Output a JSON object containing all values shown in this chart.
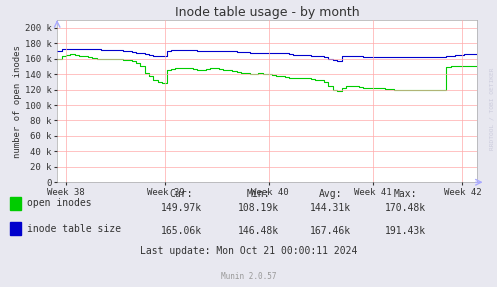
{
  "title": "Inode table usage - by month",
  "ylabel": "number of open inodes",
  "bg_color": "#e8e8f0",
  "plot_bg_color": "#ffffff",
  "grid_color": "#ffaaaa",
  "border_color": "#aaaaaa",
  "ylim": [
    0,
    210000
  ],
  "yticks": [
    0,
    20000,
    40000,
    60000,
    80000,
    100000,
    120000,
    140000,
    160000,
    180000,
    200000
  ],
  "ytick_labels": [
    "0",
    "20 k",
    "40 k",
    "60 k",
    "80 k",
    "100 k",
    "120 k",
    "140 k",
    "160 k",
    "180 k",
    "200 k"
  ],
  "xticklabels": [
    "Week 38",
    "Week 39",
    "Week 40",
    "Week 41",
    "Week 42"
  ],
  "legend_labels": [
    "open inodes",
    "inode table size"
  ],
  "legend_colors": [
    "#00cc00",
    "#0000cc"
  ],
  "footer_text": "Munin 2.0.57",
  "watermark": "RRDTOOL / TOBI OETIKER",
  "stats": {
    "header": [
      "Cur:",
      "Min:",
      "Avg:",
      "Max:"
    ],
    "row1_label": "open inodes",
    "row1_vals": [
      "149.97k",
      "108.19k",
      "144.31k",
      "170.48k"
    ],
    "row2_label": "inode table size",
    "row2_vals": [
      "165.06k",
      "146.48k",
      "167.46k",
      "191.43k"
    ],
    "last_update": "Last update: Mon Oct 21 00:00:11 2024"
  },
  "open_inodes": [
    160000,
    163000,
    165000,
    166000,
    165000,
    164000,
    163000,
    162000,
    161000,
    160000,
    160000,
    160000,
    160000,
    160000,
    159000,
    158000,
    158000,
    157000,
    155000,
    150000,
    142000,
    137000,
    133000,
    130000,
    128000,
    145000,
    147000,
    148000,
    148000,
    148000,
    148000,
    147000,
    146000,
    146000,
    147000,
    148000,
    148000,
    147000,
    146000,
    145000,
    144000,
    143000,
    142000,
    141000,
    140000,
    140000,
    141000,
    140000,
    140000,
    139000,
    138000,
    137000,
    136000,
    135000,
    135000,
    135000,
    135000,
    135000,
    134000,
    133000,
    133000,
    130000,
    125000,
    120000,
    118000,
    122000,
    124000,
    124000,
    124000,
    123000,
    122000,
    122000,
    122000,
    122000,
    122000,
    121000,
    121000,
    120000,
    120000,
    120000,
    120000,
    120000,
    119000,
    119000,
    119000,
    119000,
    119000,
    120000,
    119000,
    149000,
    150000,
    150000,
    150000,
    150000,
    150000,
    150000,
    150000
  ],
  "inode_table": [
    170000,
    172000,
    173000,
    173000,
    172000,
    172000,
    172000,
    172000,
    172000,
    172000,
    171000,
    171000,
    171000,
    171000,
    171000,
    170000,
    170000,
    169000,
    168000,
    167000,
    166000,
    165000,
    164000,
    163000,
    163000,
    170000,
    171000,
    171000,
    171000,
    171000,
    171000,
    171000,
    170000,
    170000,
    170000,
    170000,
    170000,
    170000,
    170000,
    170000,
    170000,
    169000,
    169000,
    169000,
    168000,
    168000,
    168000,
    168000,
    168000,
    168000,
    168000,
    167000,
    167000,
    166000,
    165000,
    165000,
    165000,
    165000,
    163000,
    163000,
    163000,
    162000,
    160000,
    158000,
    157000,
    163000,
    163000,
    163000,
    163000,
    163000,
    162000,
    162000,
    162000,
    162000,
    162000,
    162000,
    162000,
    162000,
    162000,
    162000,
    162000,
    162000,
    162000,
    162000,
    162000,
    162000,
    162000,
    162000,
    162000,
    163000,
    164000,
    165000,
    165000,
    166000,
    166000,
    166000,
    166000
  ]
}
